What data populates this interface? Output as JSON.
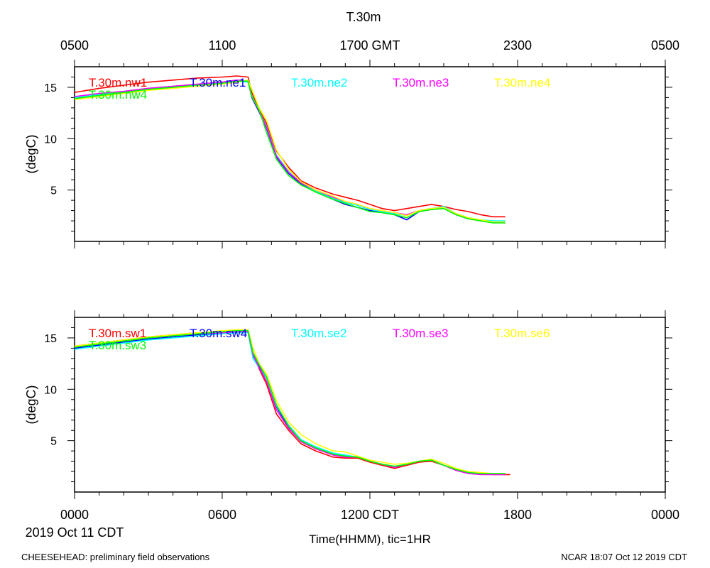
{
  "chart_data": {
    "type": "line",
    "title": "T.30m",
    "xlabel": "Time(HHMM), tic=1HR",
    "date_label": "2019 Oct 11 CDT",
    "footer_left": "CHEESEHEAD: preliminary field observations",
    "footer_right": "NCAR 18:07 Oct 12 2019 CDT",
    "x_unit": "hours since 0000 CDT",
    "xlim": [
      0,
      24
    ],
    "ylim": [
      0,
      17
    ],
    "top_ticks": [
      {
        "x": 0,
        "label": "0500"
      },
      {
        "x": 6,
        "label": "1100"
      },
      {
        "x": 12,
        "label": "1700 GMT"
      },
      {
        "x": 18,
        "label": "2300"
      },
      {
        "x": 24,
        "label": "0500"
      }
    ],
    "bottom_ticks": [
      {
        "x": 0,
        "label": "0000"
      },
      {
        "x": 6,
        "label": "0600"
      },
      {
        "x": 12,
        "label": "1200 CDT"
      },
      {
        "x": 18,
        "label": "1800"
      },
      {
        "x": 24,
        "label": "0000"
      }
    ],
    "panels": [
      {
        "ylabel": "(degC)",
        "yticks": [
          5,
          10,
          15
        ],
        "series": [
          {
            "name": "T.30m.nw1",
            "color": "#ff0000",
            "x": [
              0,
              1,
              2,
              3,
              4,
              5,
              6,
              6.6,
              7.05,
              7.2,
              7.5,
              7.8,
              8.2,
              8.7,
              9.2,
              9.8,
              10.5,
              11.0,
              11.5,
              12.0,
              12.5,
              13.0,
              13.5,
              14.0,
              14.5,
              15.0,
              15.5,
              16.0,
              16.5,
              17.0,
              17.5
            ],
            "y": [
              14.5,
              14.9,
              15.2,
              15.5,
              15.7,
              15.9,
              16.0,
              16.1,
              16.0,
              14.5,
              12.8,
              11.5,
              8.8,
              7.2,
              5.9,
              5.2,
              4.6,
              4.3,
              4.0,
              3.6,
              3.2,
              3.0,
              3.2,
              3.4,
              3.6,
              3.4,
              3.1,
              2.9,
              2.6,
              2.4,
              2.4
            ]
          },
          {
            "name": "T.30m.ne1",
            "color": "#0000ff",
            "x": [
              0,
              1,
              2,
              3,
              4,
              5,
              6,
              6.6,
              7.05,
              7.2,
              7.5,
              7.8,
              8.2,
              8.7,
              9.2,
              9.8,
              10.5,
              11.0,
              11.5,
              12.0,
              12.5,
              13.0,
              13.5,
              14.0,
              14.5,
              15.0,
              15.5,
              16.0,
              16.5,
              17.0,
              17.5
            ],
            "y": [
              14.0,
              14.3,
              14.6,
              14.9,
              15.1,
              15.3,
              15.5,
              15.7,
              15.6,
              14.0,
              12.6,
              11.0,
              8.2,
              6.6,
              5.6,
              4.8,
              4.1,
              3.6,
              3.3,
              3.0,
              2.8,
              2.6,
              2.1,
              2.9,
              3.1,
              3.2,
              2.6,
              2.2,
              2.1,
              1.9,
              1.9
            ]
          },
          {
            "name": "T.30m.ne2",
            "color": "#00ffff",
            "x": [
              0,
              1,
              2,
              3,
              4,
              5,
              6,
              6.6,
              7.05,
              7.2,
              7.5,
              7.8,
              8.2,
              8.7,
              9.2,
              9.8,
              10.5,
              11.0,
              11.5,
              12.0,
              12.5,
              13.0,
              13.5,
              14.0,
              14.5,
              15.0,
              15.5,
              16.0,
              16.5,
              17.0,
              17.5
            ],
            "y": [
              14.0,
              14.3,
              14.6,
              14.8,
              15.0,
              15.2,
              15.4,
              15.6,
              15.5,
              14.2,
              12.7,
              11.2,
              8.4,
              6.8,
              5.7,
              4.9,
              4.2,
              3.8,
              3.5,
              3.1,
              2.9,
              2.7,
              2.5,
              3.0,
              3.2,
              3.4,
              2.7,
              2.3,
              2.1,
              2.0,
              2.0
            ]
          },
          {
            "name": "T.30m.ne3",
            "color": "#ff00ff",
            "x": [
              0,
              1,
              2,
              3,
              4,
              5,
              6,
              6.6,
              7.05,
              7.2,
              7.5,
              7.8,
              8.2,
              8.7,
              9.2,
              9.8,
              10.5,
              11.0,
              11.5,
              12.0,
              12.5,
              13.0,
              13.5,
              14.0,
              14.5,
              15.0,
              15.5,
              16.0,
              16.5,
              17.0,
              17.5
            ],
            "y": [
              14.1,
              14.4,
              14.6,
              14.9,
              15.1,
              15.3,
              15.5,
              15.7,
              15.6,
              14.1,
              12.7,
              11.1,
              8.3,
              6.7,
              5.7,
              5.0,
              4.3,
              3.9,
              3.6,
              3.2,
              3.0,
              2.8,
              2.6,
              3.0,
              3.2,
              3.3,
              2.6,
              2.2,
              2.0,
              1.9,
              1.8
            ]
          },
          {
            "name": "T.30m.ne4",
            "color": "#ffff00",
            "x": [
              0,
              1,
              2,
              3,
              4,
              5,
              6,
              6.6,
              7.05,
              7.2,
              7.5,
              7.8,
              8.2,
              8.7,
              9.2,
              9.8,
              10.5,
              11.0,
              11.5,
              12.0,
              12.5,
              13.0,
              13.5,
              14.0,
              14.5,
              15.0,
              15.5,
              16.0,
              16.5,
              17.0,
              17.5
            ],
            "y": [
              13.8,
              14.1,
              14.4,
              14.7,
              14.9,
              15.1,
              15.3,
              15.5,
              15.7,
              14.8,
              13.0,
              11.8,
              8.9,
              7.0,
              5.8,
              5.0,
              4.4,
              3.9,
              3.6,
              3.2,
              3.0,
              2.8,
              2.5,
              3.0,
              3.2,
              3.3,
              2.7,
              2.3,
              2.1,
              1.9,
              1.9
            ]
          },
          {
            "name": "T.30m.nw4",
            "color": "#00ff00",
            "x": [
              0,
              1,
              2,
              3,
              4,
              5,
              6,
              6.6,
              7.05,
              7.2,
              7.5,
              7.8,
              8.2,
              8.7,
              9.2,
              9.8,
              10.5,
              11.0,
              11.5,
              12.0,
              12.5,
              13.0,
              13.5,
              14.0,
              14.5,
              15.0,
              15.5,
              16.0,
              16.5,
              17.0,
              17.5
            ],
            "y": [
              13.9,
              14.2,
              14.5,
              14.8,
              15.0,
              15.2,
              15.4,
              15.6,
              15.6,
              14.1,
              12.8,
              10.6,
              8.0,
              6.4,
              5.5,
              4.8,
              4.1,
              3.7,
              3.3,
              2.9,
              2.8,
              2.6,
              2.3,
              2.9,
              3.1,
              3.2,
              2.6,
              2.2,
              2.0,
              1.8,
              1.8
            ]
          }
        ],
        "legend_row1": [
          "T.30m.nw1",
          "T.30m.ne1",
          "T.30m.ne2",
          "T.30m.ne3",
          "T.30m.ne4"
        ],
        "legend_row2": [
          "T.30m.nw4"
        ]
      },
      {
        "ylabel": "(degC)",
        "yticks": [
          5,
          10,
          15
        ],
        "series": [
          {
            "name": "T.30m.sw1",
            "color": "#ff0000",
            "x": [
              0,
              1,
              2,
              3,
              4,
              5,
              6,
              6.6,
              7.05,
              7.25,
              7.5,
              7.8,
              8.2,
              8.7,
              9.2,
              9.8,
              10.5,
              11.0,
              11.5,
              12.0,
              12.5,
              13.0,
              13.5,
              14.0,
              14.5,
              15.0,
              15.5,
              16.0,
              16.5,
              17.0,
              17.7
            ],
            "y": [
              14.2,
              14.5,
              14.8,
              15.1,
              15.3,
              15.5,
              15.6,
              15.7,
              15.6,
              13.5,
              12.0,
              10.5,
              7.6,
              6.0,
              4.7,
              4.0,
              3.4,
              3.3,
              3.3,
              2.9,
              2.6,
              2.3,
              2.6,
              2.9,
              3.0,
              2.6,
              2.2,
              1.9,
              1.8,
              1.7,
              1.7
            ]
          },
          {
            "name": "T.30m.sw4",
            "color": "#0000ff",
            "x": [
              0,
              1,
              2,
              3,
              4,
              5,
              6,
              6.6,
              7.05,
              7.25,
              7.5,
              7.8,
              8.2,
              8.7,
              9.2,
              9.8,
              10.5,
              11.0,
              11.5,
              12.0,
              12.5,
              13.0,
              13.5,
              14.0,
              14.5,
              15.0,
              15.5,
              16.0,
              16.5,
              17.0,
              17.5
            ],
            "y": [
              14.0,
              14.3,
              14.6,
              14.9,
              15.1,
              15.3,
              15.5,
              15.6,
              15.6,
              13.3,
              12.2,
              11.0,
              8.3,
              6.3,
              5.0,
              4.3,
              3.7,
              3.5,
              3.4,
              3.0,
              2.7,
              2.5,
              2.7,
              3.0,
              3.1,
              2.6,
              2.2,
              1.9,
              1.8,
              1.8,
              1.8
            ]
          },
          {
            "name": "T.30m.se2",
            "color": "#00ffff",
            "x": [
              0,
              1,
              2,
              3,
              4,
              5,
              6,
              6.6,
              7.05,
              7.25,
              7.5,
              7.8,
              8.2,
              8.7,
              9.2,
              9.8,
              10.5,
              11.0,
              11.5,
              12.0,
              12.5,
              13.0,
              13.5,
              14.0,
              14.5,
              15.0,
              15.5,
              16.0,
              16.5,
              17.0,
              17.5
            ],
            "y": [
              13.9,
              14.2,
              14.5,
              14.8,
              15.0,
              15.2,
              15.4,
              15.5,
              15.5,
              13.0,
              12.1,
              11.0,
              8.4,
              6.5,
              5.1,
              4.4,
              3.8,
              3.6,
              3.4,
              3.0,
              2.7,
              2.5,
              2.7,
              3.0,
              3.1,
              2.6,
              2.2,
              1.9,
              1.8,
              1.8,
              1.8
            ]
          },
          {
            "name": "T.30m.se3",
            "color": "#ff00ff",
            "x": [
              0,
              1,
              2,
              3,
              4,
              5,
              6,
              6.6,
              7.05,
              7.25,
              7.5,
              7.8,
              8.2,
              8.7,
              9.2,
              9.8,
              10.5,
              11.0,
              11.5,
              12.0,
              12.5,
              13.0,
              13.5,
              14.0,
              14.5,
              15.0,
              15.5,
              16.0,
              16.5,
              17.0,
              17.5
            ],
            "y": [
              14.1,
              14.4,
              14.7,
              15.0,
              15.2,
              15.4,
              15.5,
              15.6,
              15.6,
              13.4,
              12.1,
              10.8,
              8.0,
              6.2,
              4.9,
              4.2,
              3.6,
              3.4,
              3.4,
              3.0,
              2.7,
              2.4,
              2.7,
              3.0,
              3.1,
              2.6,
              2.1,
              1.8,
              1.7,
              1.7,
              1.7
            ]
          },
          {
            "name": "T.30m.se6",
            "color": "#ffff00",
            "x": [
              0,
              1,
              2,
              3,
              4,
              5,
              6,
              6.6,
              7.05,
              7.25,
              7.5,
              7.8,
              8.2,
              8.7,
              9.2,
              9.8,
              10.5,
              11.0,
              11.5,
              12.0,
              12.5,
              13.0,
              13.5,
              14.0,
              14.5,
              15.0,
              15.5,
              16.0,
              16.5,
              17.0,
              17.5
            ],
            "y": [
              14.2,
              14.5,
              14.8,
              15.1,
              15.3,
              15.5,
              15.7,
              15.8,
              15.8,
              14.0,
              12.5,
              11.5,
              8.9,
              6.8,
              5.6,
              4.7,
              4.0,
              3.9,
              3.5,
              3.1,
              2.9,
              2.7,
              2.8,
              3.0,
              3.2,
              2.8,
              2.3,
              2.0,
              1.9,
              1.8,
              1.8
            ]
          },
          {
            "name": "T.30m.sw3",
            "color": "#00ff00",
            "x": [
              0,
              1,
              2,
              3,
              4,
              5,
              6,
              6.6,
              7.05,
              7.25,
              7.5,
              7.8,
              8.2,
              8.7,
              9.2,
              9.8,
              10.5,
              11.0,
              11.5,
              12.0,
              12.5,
              13.0,
              13.5,
              14.0,
              14.5,
              15.0,
              15.5,
              16.0,
              16.5,
              17.0,
              17.5
            ],
            "y": [
              14.1,
              14.4,
              14.7,
              15.0,
              15.2,
              15.4,
              15.6,
              15.7,
              15.7,
              13.6,
              12.4,
              11.2,
              8.5,
              6.4,
              5.0,
              4.3,
              3.7,
              3.5,
              3.4,
              3.0,
              2.7,
              2.5,
              2.7,
              3.0,
              3.1,
              2.6,
              2.2,
              1.9,
              1.8,
              1.8,
              1.8
            ]
          }
        ],
        "legend_row1": [
          "T.30m.sw1",
          "T.30m.sw4",
          "T.30m.se2",
          "T.30m.se3",
          "T.30m.se6"
        ],
        "legend_row2": [
          "T.30m.sw3"
        ]
      }
    ]
  }
}
